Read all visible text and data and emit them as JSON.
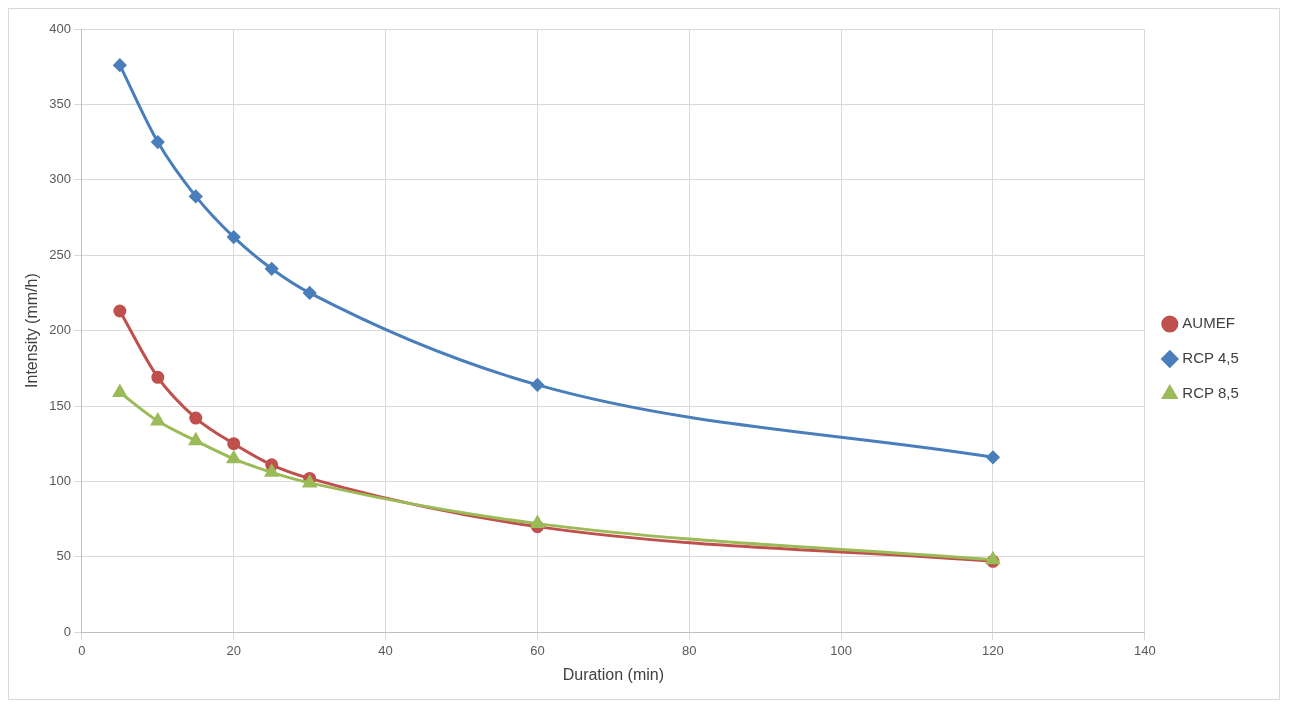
{
  "chart_data": {
    "type": "line",
    "xlabel": "Duration (min)",
    "ylabel": "Intensity (mm/h)",
    "x": [
      5,
      10,
      15,
      20,
      25,
      30,
      60,
      120
    ],
    "series": [
      {
        "name": "AUMEF",
        "color": "#c0504d",
        "marker": "circle",
        "values": [
          213,
          169,
          142,
          125,
          111,
          102,
          70,
          47
        ]
      },
      {
        "name": "RCP 4,5",
        "color": "#4a7ebb",
        "marker": "diamond",
        "values": [
          376,
          325,
          289,
          262,
          241,
          225,
          164,
          116
        ]
      },
      {
        "name": "RCP 8,5",
        "color": "#9bbb59",
        "marker": "triangle",
        "values": [
          159,
          140,
          127,
          115,
          106,
          99,
          72,
          48
        ]
      }
    ],
    "xlim": [
      0,
      140
    ],
    "xticks": [
      0,
      20,
      40,
      60,
      80,
      100,
      120,
      140
    ],
    "ylim": [
      0,
      400
    ],
    "yticks": [
      0,
      50,
      100,
      150,
      200,
      250,
      300,
      350,
      400
    ],
    "grid": true,
    "legend": "right",
    "line_style": "solid"
  }
}
